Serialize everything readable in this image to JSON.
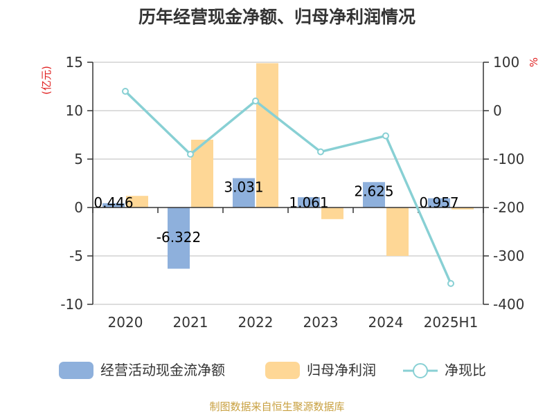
{
  "title": "历年经营现金净额、归母净利润情况",
  "source": "制图数据来自恒生聚源数据库",
  "colors": {
    "cash": "#8eb0dc",
    "profit": "#fed796",
    "ratio": "#88d0d4",
    "grid": "#bbbbbb",
    "axis": "#333333",
    "unit": "#e02020",
    "source": "#c8a040"
  },
  "chart_data": {
    "type": "bar",
    "title": "历年经营现金净额、归母净利润情况",
    "categories": [
      "2020",
      "2021",
      "2022",
      "2023",
      "2024",
      "2025H1"
    ],
    "y_left": {
      "unit": "(亿元)",
      "range": [
        -10,
        15
      ],
      "ticks": [
        "15",
        "10",
        "5",
        "0",
        "-5",
        "-10"
      ]
    },
    "y_right": {
      "unit": "%",
      "range": [
        -400,
        100
      ],
      "ticks": [
        "100",
        "0",
        "-100",
        "-200",
        "-300",
        "-400"
      ]
    },
    "grid": true,
    "legend": "bottom",
    "series": [
      {
        "name": "经营活动现金流净额",
        "type": "bar",
        "axis": "left",
        "values": [
          0.446,
          -6.322,
          3.031,
          1.061,
          2.625,
          0.957
        ],
        "labels": [
          "0.446",
          "-6.322",
          "3.031",
          "1.061",
          "2.625",
          "0.957"
        ]
      },
      {
        "name": "归母净利润",
        "type": "bar",
        "axis": "left",
        "values": [
          1.2,
          7.0,
          14.9,
          -1.2,
          -5.0,
          -0.2
        ]
      },
      {
        "name": "净现比",
        "type": "line",
        "axis": "right",
        "values": [
          40,
          -90,
          20,
          -85,
          -52,
          -357
        ]
      }
    ]
  }
}
